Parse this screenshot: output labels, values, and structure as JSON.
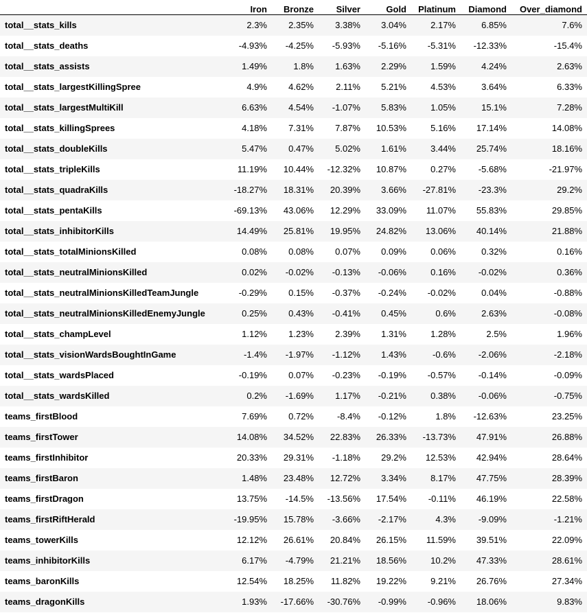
{
  "table": {
    "columns": [
      "Iron",
      "Bronze",
      "Silver",
      "Gold",
      "Platinum",
      "Diamond",
      "Over_diamond"
    ],
    "rows": [
      {
        "label": "total__stats_kills",
        "values": [
          "2.3%",
          "2.35%",
          "3.38%",
          "3.04%",
          "2.17%",
          "6.85%",
          "7.6%"
        ]
      },
      {
        "label": "total__stats_deaths",
        "values": [
          "-4.93%",
          "-4.25%",
          "-5.93%",
          "-5.16%",
          "-5.31%",
          "-12.33%",
          "-15.4%"
        ]
      },
      {
        "label": "total__stats_assists",
        "values": [
          "1.49%",
          "1.8%",
          "1.63%",
          "2.29%",
          "1.59%",
          "4.24%",
          "2.63%"
        ]
      },
      {
        "label": "total__stats_largestKillingSpree",
        "values": [
          "4.9%",
          "4.62%",
          "2.11%",
          "5.21%",
          "4.53%",
          "3.64%",
          "6.33%"
        ]
      },
      {
        "label": "total__stats_largestMultiKill",
        "values": [
          "6.63%",
          "4.54%",
          "-1.07%",
          "5.83%",
          "1.05%",
          "15.1%",
          "7.28%"
        ]
      },
      {
        "label": "total__stats_killingSprees",
        "values": [
          "4.18%",
          "7.31%",
          "7.87%",
          "10.53%",
          "5.16%",
          "17.14%",
          "14.08%"
        ]
      },
      {
        "label": "total__stats_doubleKills",
        "values": [
          "5.47%",
          "0.47%",
          "5.02%",
          "1.61%",
          "3.44%",
          "25.74%",
          "18.16%"
        ]
      },
      {
        "label": "total__stats_tripleKills",
        "values": [
          "11.19%",
          "10.44%",
          "-12.32%",
          "10.87%",
          "0.27%",
          "-5.68%",
          "-21.97%"
        ]
      },
      {
        "label": "total__stats_quadraKills",
        "values": [
          "-18.27%",
          "18.31%",
          "20.39%",
          "3.66%",
          "-27.81%",
          "-23.3%",
          "29.2%"
        ]
      },
      {
        "label": "total__stats_pentaKills",
        "values": [
          "-69.13%",
          "43.06%",
          "12.29%",
          "33.09%",
          "11.07%",
          "55.83%",
          "29.85%"
        ]
      },
      {
        "label": "total__stats_inhibitorKills",
        "values": [
          "14.49%",
          "25.81%",
          "19.95%",
          "24.82%",
          "13.06%",
          "40.14%",
          "21.88%"
        ]
      },
      {
        "label": "total__stats_totalMinionsKilled",
        "values": [
          "0.08%",
          "0.08%",
          "0.07%",
          "0.09%",
          "0.06%",
          "0.32%",
          "0.16%"
        ]
      },
      {
        "label": "total__stats_neutralMinionsKilled",
        "values": [
          "0.02%",
          "-0.02%",
          "-0.13%",
          "-0.06%",
          "0.16%",
          "-0.02%",
          "0.36%"
        ]
      },
      {
        "label": "total__stats_neutralMinionsKilledTeamJungle",
        "values": [
          "-0.29%",
          "0.15%",
          "-0.37%",
          "-0.24%",
          "-0.02%",
          "0.04%",
          "-0.88%"
        ]
      },
      {
        "label": "total__stats_neutralMinionsKilledEnemyJungle",
        "values": [
          "0.25%",
          "0.43%",
          "-0.41%",
          "0.45%",
          "0.6%",
          "2.63%",
          "-0.08%"
        ]
      },
      {
        "label": "total__stats_champLevel",
        "values": [
          "1.12%",
          "1.23%",
          "2.39%",
          "1.31%",
          "1.28%",
          "2.5%",
          "1.96%"
        ]
      },
      {
        "label": "total__stats_visionWardsBoughtInGame",
        "values": [
          "-1.4%",
          "-1.97%",
          "-1.12%",
          "1.43%",
          "-0.6%",
          "-2.06%",
          "-2.18%"
        ]
      },
      {
        "label": "total__stats_wardsPlaced",
        "values": [
          "-0.19%",
          "0.07%",
          "-0.23%",
          "-0.19%",
          "-0.57%",
          "-0.14%",
          "-0.09%"
        ]
      },
      {
        "label": "total__stats_wardsKilled",
        "values": [
          "0.2%",
          "-1.69%",
          "1.17%",
          "-0.21%",
          "0.38%",
          "-0.06%",
          "-0.75%"
        ]
      },
      {
        "label": "teams_firstBlood",
        "values": [
          "7.69%",
          "0.72%",
          "-8.4%",
          "-0.12%",
          "1.8%",
          "-12.63%",
          "23.25%"
        ]
      },
      {
        "label": "teams_firstTower",
        "values": [
          "14.08%",
          "34.52%",
          "22.83%",
          "26.33%",
          "-13.73%",
          "47.91%",
          "26.88%"
        ]
      },
      {
        "label": "teams_firstInhibitor",
        "values": [
          "20.33%",
          "29.31%",
          "-1.18%",
          "29.2%",
          "12.53%",
          "42.94%",
          "28.64%"
        ]
      },
      {
        "label": "teams_firstBaron",
        "values": [
          "1.48%",
          "23.48%",
          "12.72%",
          "3.34%",
          "8.17%",
          "47.75%",
          "28.39%"
        ]
      },
      {
        "label": "teams_firstDragon",
        "values": [
          "13.75%",
          "-14.5%",
          "-13.56%",
          "17.54%",
          "-0.11%",
          "46.19%",
          "22.58%"
        ]
      },
      {
        "label": "teams_firstRiftHerald",
        "values": [
          "-19.95%",
          "15.78%",
          "-3.66%",
          "-2.17%",
          "4.3%",
          "-9.09%",
          "-1.21%"
        ]
      },
      {
        "label": "teams_towerKills",
        "values": [
          "12.12%",
          "26.61%",
          "20.84%",
          "26.15%",
          "11.59%",
          "39.51%",
          "22.09%"
        ]
      },
      {
        "label": "teams_inhibitorKills",
        "values": [
          "6.17%",
          "-4.79%",
          "21.21%",
          "18.56%",
          "10.2%",
          "47.33%",
          "28.61%"
        ]
      },
      {
        "label": "teams_baronKills",
        "values": [
          "12.54%",
          "18.25%",
          "11.82%",
          "19.22%",
          "9.21%",
          "26.76%",
          "27.34%"
        ]
      },
      {
        "label": "teams_dragonKills",
        "values": [
          "1.93%",
          "-17.66%",
          "-30.76%",
          "-0.99%",
          "-0.96%",
          "18.06%",
          "9.83%"
        ]
      }
    ]
  }
}
